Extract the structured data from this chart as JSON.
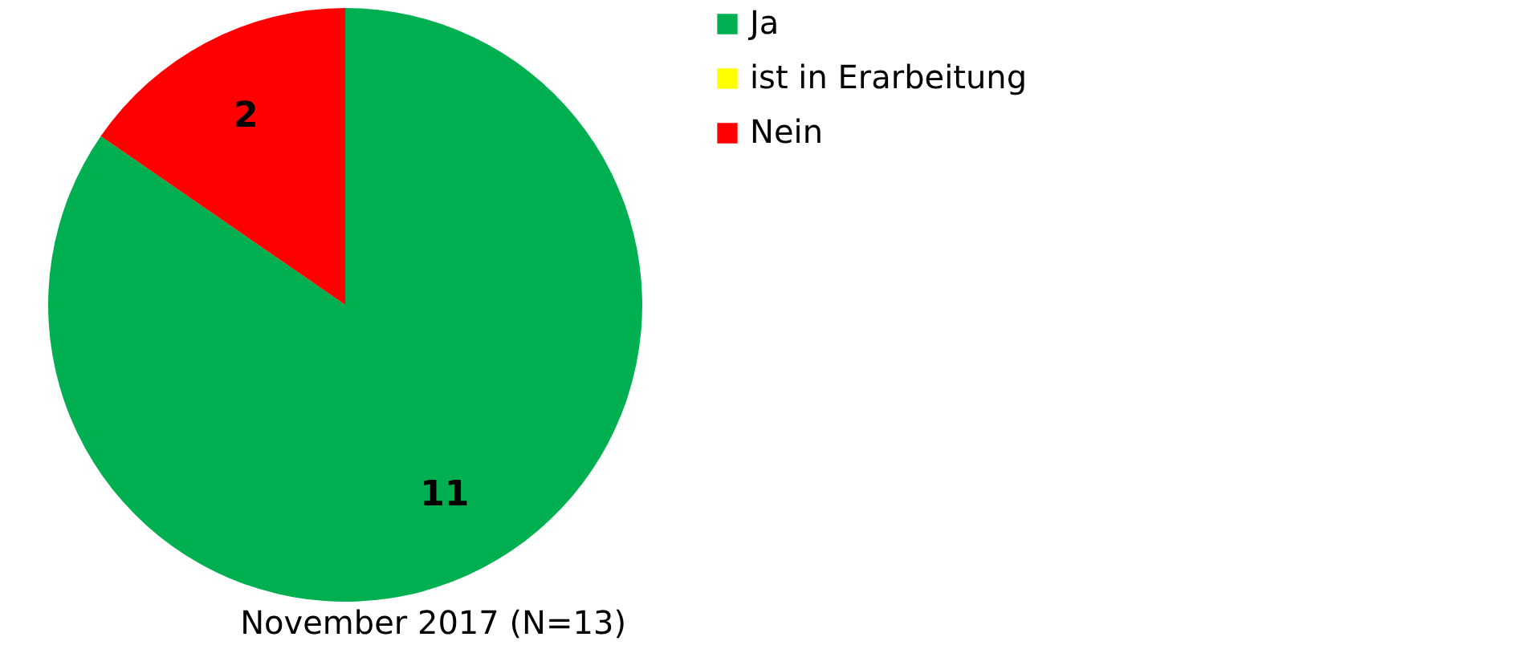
{
  "chart_data": {
    "type": "pie",
    "title": "November 2017 (N=13)",
    "categories": [
      "Ja",
      "ist in Erarbeitung",
      "Nein"
    ],
    "values": [
      11,
      0,
      2
    ],
    "colors": [
      "#00b050",
      "#ffff00",
      "#ff0000"
    ],
    "value_labels": [
      "11",
      null,
      "2"
    ],
    "legend": "right"
  }
}
